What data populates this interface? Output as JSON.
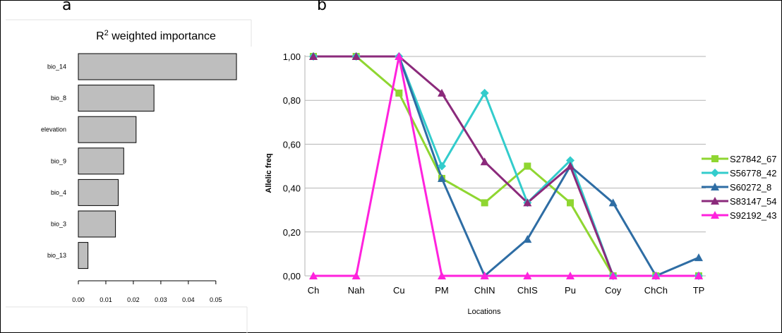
{
  "panel_labels": {
    "a": "a",
    "b": "b"
  },
  "chart_data": [
    {
      "type": "bar",
      "orientation": "horizontal",
      "title": "R² weighted importance",
      "categories": [
        "bio_14",
        "bio_8",
        "elevation",
        "bio_9",
        "bio_4",
        "bio_3",
        "bio_13"
      ],
      "values": [
        0.0575,
        0.0275,
        0.021,
        0.0165,
        0.0145,
        0.0135,
        0.0035
      ],
      "xticks": [
        "0.00",
        "0.01",
        "0.02",
        "0.03",
        "0.04",
        "0.05"
      ],
      "xlim": [
        0,
        0.058
      ],
      "bar_color": "#bebebe"
    },
    {
      "type": "line",
      "xlabel": "Locations",
      "ylabel": "Allelic freq",
      "categories": [
        "Ch",
        "Nah",
        "Cu",
        "PM",
        "ChIN",
        "ChIS",
        "Pu",
        "Coy",
        "ChCh",
        "TP"
      ],
      "yticks": [
        "0,00",
        "0,20",
        "0,40",
        "0,60",
        "0,80",
        "1,00"
      ],
      "ylim": [
        0,
        1
      ],
      "grid": true,
      "legend_position": "right",
      "series": [
        {
          "name": "S27842_67",
          "color": "#8fd631",
          "marker": "square",
          "values": [
            1.0,
            1.0,
            0.833,
            0.444,
            0.333,
            0.5,
            0.333,
            0.0,
            0.0,
            0.0
          ]
        },
        {
          "name": "S56778_42",
          "color": "#33cccc",
          "marker": "diamond",
          "values": [
            1.0,
            1.0,
            1.0,
            0.5,
            0.833,
            0.333,
            0.526,
            0.0,
            0.0,
            0.0
          ]
        },
        {
          "name": "S60272_8",
          "color": "#2e6da4",
          "marker": "triangle",
          "values": [
            1.0,
            1.0,
            1.0,
            0.444,
            0.0,
            0.167,
            0.5,
            0.333,
            0.0,
            0.083
          ]
        },
        {
          "name": "S83147_54",
          "color": "#8b2a7b",
          "marker": "triangle",
          "values": [
            1.0,
            1.0,
            1.0,
            0.833,
            0.52,
            0.333,
            0.5,
            0.0,
            0.0,
            0.0
          ]
        },
        {
          "name": "S92192_43",
          "color": "#ff22dd",
          "marker": "triangle",
          "values": [
            0.0,
            0.0,
            1.0,
            0.0,
            0.0,
            0.0,
            0.0,
            0.0,
            0.0,
            0.0
          ]
        }
      ]
    }
  ]
}
